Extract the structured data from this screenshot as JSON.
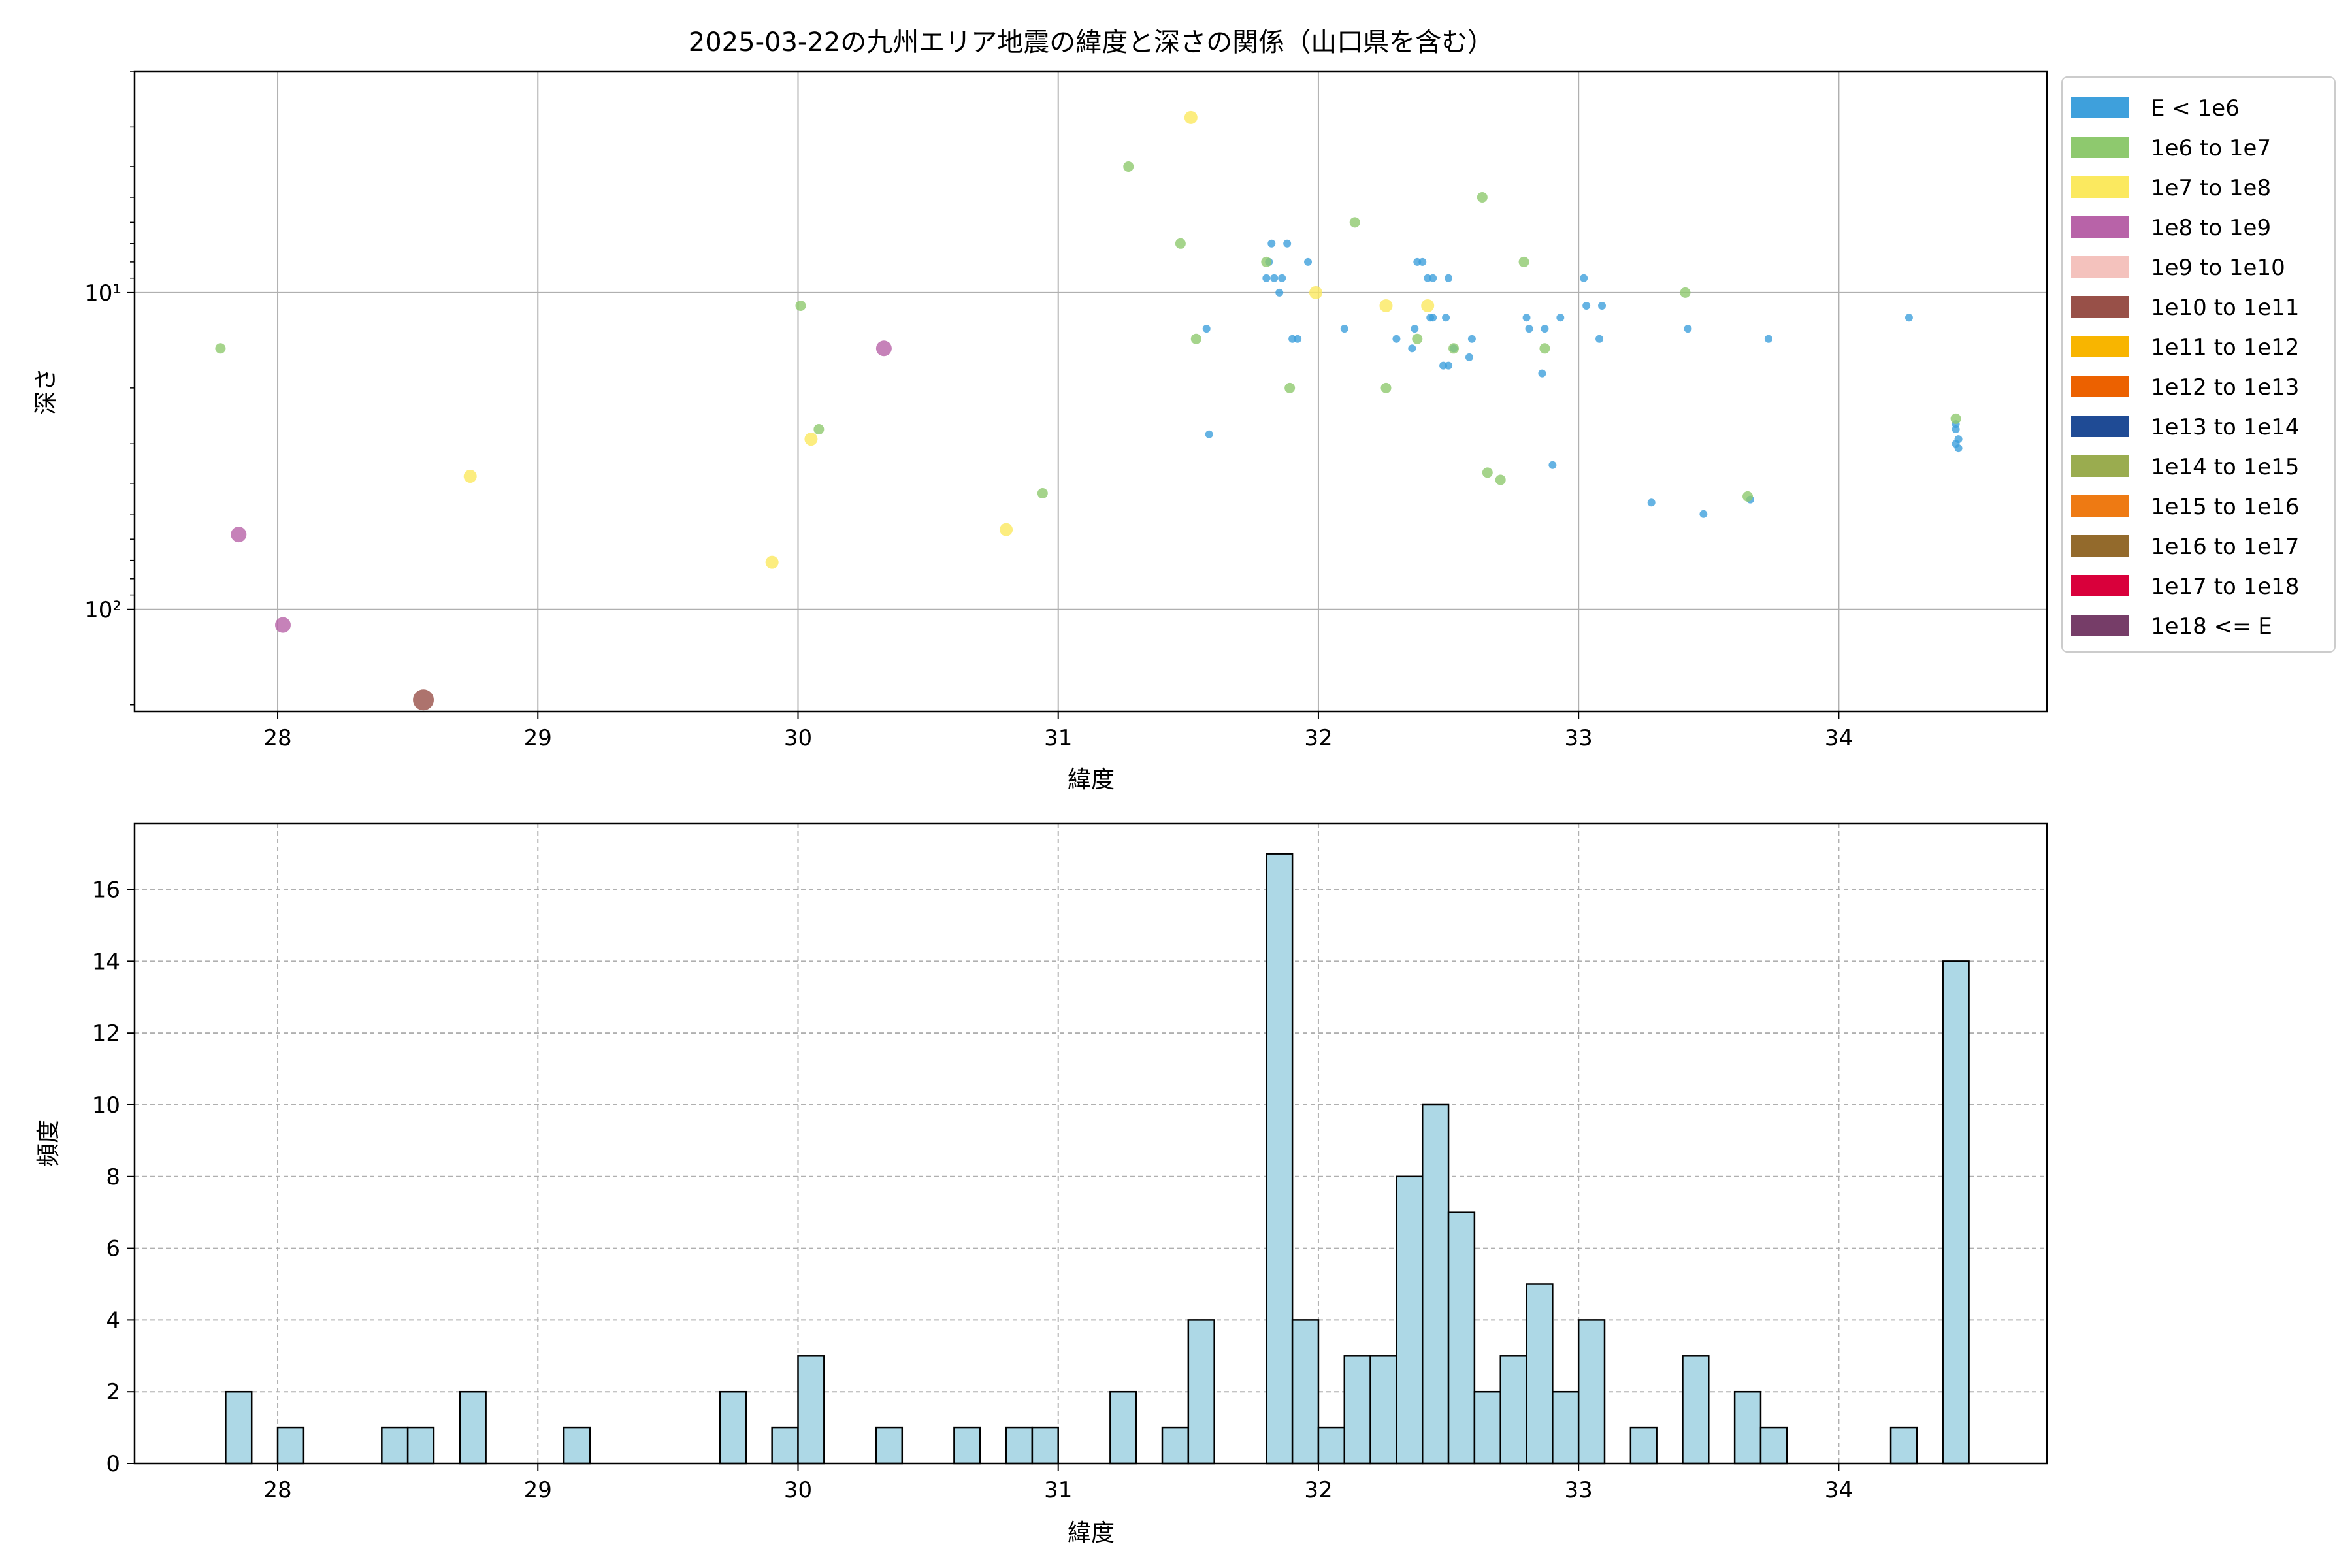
{
  "chart_data": [
    {
      "type": "scatter",
      "title": "2025-03-22の九州エリア地震の緯度と深さの関係（山口県を含む）",
      "xlabel": "緯度",
      "ylabel": "深さ",
      "xlim": [
        27.45,
        34.8
      ],
      "ylim": [
        210,
        2
      ],
      "y_scale": "log",
      "y_inverted": true,
      "grid": true,
      "legend_position": "outside-right",
      "x_ticks": [
        "28",
        "29",
        "30",
        "31",
        "32",
        "33",
        "34"
      ],
      "y_ticks": [
        {
          "value": 10,
          "label": "10¹"
        },
        {
          "value": 100,
          "label": "10²"
        }
      ],
      "legend": [
        {
          "label": "E < 1e6",
          "color": "#3ea0dc"
        },
        {
          "label": "1e6 to 1e7",
          "color": "#8ec96e"
        },
        {
          "label": "1e7 to 1e8",
          "color": "#fbe95f"
        },
        {
          "label": "1e8 to 1e9",
          "color": "#b863a8"
        },
        {
          "label": "1e9 to 1e10",
          "color": "#f4c2bd"
        },
        {
          "label": "1e10 to 1e11",
          "color": "#985048"
        },
        {
          "label": "1e11 to 1e12",
          "color": "#f8b500"
        },
        {
          "label": "1e12 to 1e13",
          "color": "#ec6100"
        },
        {
          "label": "1e13 to 1e14",
          "color": "#1f4b95"
        },
        {
          "label": "1e14 to 1e15",
          "color": "#9aac4f"
        },
        {
          "label": "1e15 to 1e16",
          "color": "#ee7a13"
        },
        {
          "label": "1e16 to 1e17",
          "color": "#936a2c"
        },
        {
          "label": "1e17 to 1e18",
          "color": "#d9003b"
        },
        {
          "label": "1e18 <= E",
          "color": "#763d68"
        }
      ],
      "series": [
        {
          "class": 0,
          "points": [
            [
              31.57,
              13
            ],
            [
              31.58,
              28
            ],
            [
              31.8,
              9
            ],
            [
              31.81,
              8
            ],
            [
              31.82,
              7
            ],
            [
              31.83,
              9
            ],
            [
              31.85,
              10
            ],
            [
              31.86,
              9
            ],
            [
              31.88,
              7
            ],
            [
              31.9,
              14
            ],
            [
              31.92,
              14
            ],
            [
              31.96,
              8
            ],
            [
              32.1,
              13
            ],
            [
              32.3,
              14
            ],
            [
              32.36,
              15
            ],
            [
              32.37,
              13
            ],
            [
              32.38,
              8
            ],
            [
              32.4,
              8
            ],
            [
              32.42,
              9
            ],
            [
              32.43,
              12
            ],
            [
              32.44,
              12
            ],
            [
              32.44,
              9
            ],
            [
              32.48,
              17
            ],
            [
              32.49,
              12
            ],
            [
              32.5,
              9
            ],
            [
              32.5,
              17
            ],
            [
              32.52,
              15
            ],
            [
              32.58,
              16
            ],
            [
              32.59,
              14
            ],
            [
              32.8,
              12
            ],
            [
              32.81,
              13
            ],
            [
              32.86,
              18
            ],
            [
              32.87,
              13
            ],
            [
              32.9,
              35
            ],
            [
              32.93,
              12
            ],
            [
              33.02,
              9
            ],
            [
              33.03,
              11
            ],
            [
              33.08,
              14
            ],
            [
              33.09,
              11
            ],
            [
              33.28,
              46
            ],
            [
              33.48,
              50
            ],
            [
              33.42,
              13
            ],
            [
              33.66,
              45
            ],
            [
              33.73,
              14
            ],
            [
              34.27,
              12
            ],
            [
              34.45,
              26
            ],
            [
              34.45,
              27
            ],
            [
              34.46,
              29
            ],
            [
              34.46,
              31
            ],
            [
              34.45,
              30
            ]
          ]
        },
        {
          "class": 1,
          "points": [
            [
              27.78,
              15
            ],
            [
              30.01,
              11
            ],
            [
              30.08,
              27
            ],
            [
              30.94,
              43
            ],
            [
              31.27,
              4
            ],
            [
              31.47,
              7
            ],
            [
              31.53,
              14
            ],
            [
              31.8,
              8
            ],
            [
              31.89,
              20
            ],
            [
              32.14,
              6
            ],
            [
              32.26,
              20
            ],
            [
              32.38,
              14
            ],
            [
              32.52,
              15
            ],
            [
              32.63,
              5
            ],
            [
              32.65,
              37
            ],
            [
              32.7,
              39
            ],
            [
              32.79,
              8
            ],
            [
              32.87,
              15
            ],
            [
              33.41,
              10
            ],
            [
              33.65,
              44
            ],
            [
              34.45,
              25
            ]
          ]
        },
        {
          "class": 2,
          "points": [
            [
              28.74,
              38
            ],
            [
              29.9,
              71
            ],
            [
              30.05,
              29
            ],
            [
              30.8,
              56
            ],
            [
              31.51,
              2.8
            ],
            [
              31.99,
              10
            ],
            [
              32.26,
              11
            ],
            [
              32.42,
              11
            ]
          ]
        },
        {
          "class": 3,
          "points": [
            [
              27.85,
              58
            ],
            [
              28.02,
              112
            ],
            [
              30.33,
              15
            ]
          ]
        },
        {
          "class": 5,
          "points": [
            [
              28.56,
              193
            ]
          ]
        }
      ]
    },
    {
      "type": "bar",
      "xlabel": "緯度",
      "ylabel": "頻度",
      "xlim": [
        27.45,
        34.8
      ],
      "ylim": [
        0,
        17.85
      ],
      "grid": true,
      "bar_color": "#add8e6",
      "bin_width": 0.1,
      "x_ticks": [
        "28",
        "29",
        "30",
        "31",
        "32",
        "33",
        "34"
      ],
      "y_ticks": [
        "0",
        "2",
        "4",
        "6",
        "8",
        "10",
        "12",
        "14",
        "16"
      ],
      "bins": [
        {
          "x": 27.8,
          "value": 2
        },
        {
          "x": 28.0,
          "value": 1
        },
        {
          "x": 28.4,
          "value": 1
        },
        {
          "x": 28.5,
          "value": 1
        },
        {
          "x": 28.7,
          "value": 2
        },
        {
          "x": 29.1,
          "value": 1
        },
        {
          "x": 29.7,
          "value": 2
        },
        {
          "x": 29.9,
          "value": 1
        },
        {
          "x": 30.0,
          "value": 3
        },
        {
          "x": 30.3,
          "value": 1
        },
        {
          "x": 30.6,
          "value": 1
        },
        {
          "x": 30.8,
          "value": 1
        },
        {
          "x": 30.9,
          "value": 1
        },
        {
          "x": 31.2,
          "value": 2
        },
        {
          "x": 31.4,
          "value": 1
        },
        {
          "x": 31.5,
          "value": 4
        },
        {
          "x": 31.8,
          "value": 17
        },
        {
          "x": 31.9,
          "value": 4
        },
        {
          "x": 32.0,
          "value": 1
        },
        {
          "x": 32.1,
          "value": 3
        },
        {
          "x": 32.2,
          "value": 3
        },
        {
          "x": 32.3,
          "value": 8
        },
        {
          "x": 32.4,
          "value": 10
        },
        {
          "x": 32.5,
          "value": 7
        },
        {
          "x": 32.6,
          "value": 2
        },
        {
          "x": 32.7,
          "value": 3
        },
        {
          "x": 32.8,
          "value": 5
        },
        {
          "x": 32.9,
          "value": 2
        },
        {
          "x": 33.0,
          "value": 4
        },
        {
          "x": 33.2,
          "value": 1
        },
        {
          "x": 33.4,
          "value": 3
        },
        {
          "x": 33.6,
          "value": 2
        },
        {
          "x": 33.7,
          "value": 1
        },
        {
          "x": 34.2,
          "value": 1
        },
        {
          "x": 34.4,
          "value": 14
        }
      ]
    }
  ]
}
